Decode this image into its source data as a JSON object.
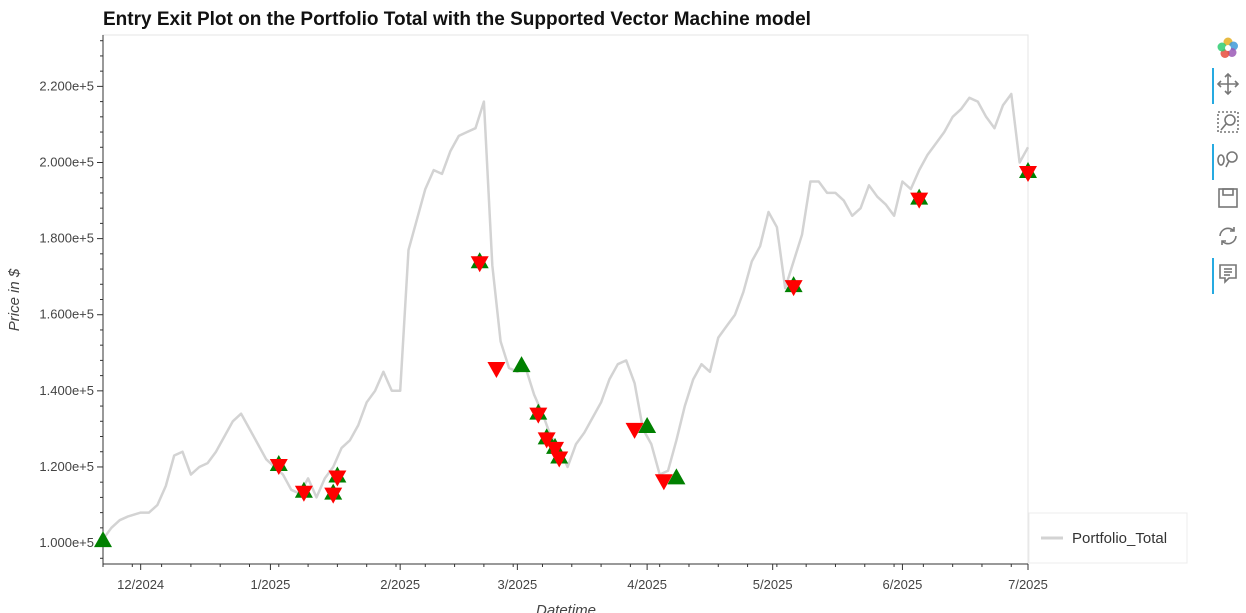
{
  "chart_data": {
    "type": "line",
    "title": "Entry Exit Plot on the Portfolio Total with the Supported Vector Machine model",
    "xlabel": "Datetime",
    "ylabel": "Price in $",
    "xlim": [
      "2024-11-22",
      "2025-07-01"
    ],
    "ylim": [
      94500,
      233500
    ],
    "y_ticks": [
      100000,
      120000,
      140000,
      160000,
      180000,
      200000,
      220000
    ],
    "y_tick_labels": [
      "1.000e+5",
      "1.200e+5",
      "1.400e+5",
      "1.600e+5",
      "1.800e+5",
      "2.000e+5",
      "2.200e+5"
    ],
    "x_ticks": [
      "2024-12-01",
      "2025-01-01",
      "2025-02-01",
      "2025-03-01",
      "2025-04-01",
      "2025-05-01",
      "2025-06-01",
      "2025-07-01"
    ],
    "x_tick_labels": [
      "12/2024",
      "1/2025",
      "2/2025",
      "3/2025",
      "4/2025",
      "5/2025",
      "6/2025",
      "7/2025"
    ],
    "grid": false,
    "legend_position": "bottom-right, outside plot",
    "series": [
      {
        "name": "Portfolio_Total",
        "color": "#d3d3d3",
        "x": [
          "2024-11-22",
          "2024-11-24",
          "2024-11-26",
          "2024-11-28",
          "2024-12-01",
          "2024-12-03",
          "2024-12-05",
          "2024-12-07",
          "2024-12-09",
          "2024-12-11",
          "2024-12-13",
          "2024-12-15",
          "2024-12-17",
          "2024-12-19",
          "2024-12-21",
          "2024-12-23",
          "2024-12-25",
          "2024-12-27",
          "2024-12-29",
          "2024-12-31",
          "2025-01-02",
          "2025-01-04",
          "2025-01-06",
          "2025-01-08",
          "2025-01-10",
          "2025-01-12",
          "2025-01-14",
          "2025-01-16",
          "2025-01-18",
          "2025-01-20",
          "2025-01-22",
          "2025-01-24",
          "2025-01-26",
          "2025-01-28",
          "2025-01-30",
          "2025-02-01",
          "2025-02-03",
          "2025-02-05",
          "2025-02-07",
          "2025-02-09",
          "2025-02-11",
          "2025-02-13",
          "2025-02-15",
          "2025-02-17",
          "2025-02-19",
          "2025-02-21",
          "2025-02-23",
          "2025-02-25",
          "2025-02-27",
          "2025-03-01",
          "2025-03-03",
          "2025-03-05",
          "2025-03-07",
          "2025-03-09",
          "2025-03-11",
          "2025-03-13",
          "2025-03-15",
          "2025-03-17",
          "2025-03-19",
          "2025-03-21",
          "2025-03-23",
          "2025-03-25",
          "2025-03-27",
          "2025-03-29",
          "2025-03-31",
          "2025-04-02",
          "2025-04-04",
          "2025-04-06",
          "2025-04-08",
          "2025-04-10",
          "2025-04-12",
          "2025-04-14",
          "2025-04-16",
          "2025-04-18",
          "2025-04-20",
          "2025-04-22",
          "2025-04-24",
          "2025-04-26",
          "2025-04-28",
          "2025-04-30",
          "2025-05-02",
          "2025-05-04",
          "2025-05-06",
          "2025-05-08",
          "2025-05-10",
          "2025-05-12",
          "2025-05-14",
          "2025-05-16",
          "2025-05-18",
          "2025-05-20",
          "2025-05-22",
          "2025-05-24",
          "2025-05-26",
          "2025-05-28",
          "2025-05-30",
          "2025-06-01",
          "2025-06-03",
          "2025-06-05",
          "2025-06-07",
          "2025-06-09",
          "2025-06-11",
          "2025-06-13",
          "2025-06-15",
          "2025-06-17",
          "2025-06-19",
          "2025-06-21",
          "2025-06-23",
          "2025-06-25",
          "2025-06-27",
          "2025-06-29",
          "2025-07-01"
        ],
        "values": [
          101000,
          104000,
          106000,
          107000,
          108000,
          108000,
          110000,
          115000,
          123000,
          124000,
          118000,
          120000,
          121000,
          124000,
          128000,
          132000,
          134000,
          130000,
          126000,
          122000,
          120000,
          118000,
          114000,
          113000,
          117000,
          112000,
          117000,
          120000,
          125000,
          127000,
          131000,
          137000,
          140000,
          145000,
          140000,
          140000,
          177000,
          185000,
          193000,
          198000,
          197000,
          203000,
          207000,
          208000,
          209000,
          216000,
          173000,
          153000,
          146000,
          145000,
          146000,
          139000,
          134000,
          128000,
          125000,
          120000,
          126000,
          129000,
          133000,
          137000,
          143000,
          147000,
          148000,
          142000,
          130000,
          126000,
          118000,
          119000,
          127000,
          136000,
          143000,
          147000,
          145000,
          154000,
          157000,
          160000,
          166000,
          174000,
          178000,
          187000,
          183000,
          167000,
          174000,
          181000,
          195000,
          195000,
          192000,
          192000,
          190000,
          186000,
          188000,
          194000,
          191000,
          189000,
          186000,
          195000,
          193000,
          198000,
          202000,
          205000,
          208000,
          212000,
          214000,
          217000,
          216000,
          212000,
          209000,
          215000,
          218000,
          200000,
          204000
        ]
      }
    ],
    "entries": {
      "marker": "triangle-up",
      "color": "#008000",
      "x": [
        "2024-11-22",
        "2025-01-03",
        "2025-01-09",
        "2025-01-16",
        "2025-01-17",
        "2025-02-20",
        "2025-03-02",
        "2025-03-06",
        "2025-03-08",
        "2025-03-10",
        "2025-03-11",
        "2025-04-01",
        "2025-04-08",
        "2025-05-06",
        "2025-06-05",
        "2025-07-01"
      ],
      "values": [
        100500,
        120500,
        113500,
        113000,
        117500,
        173800,
        146500,
        134000,
        127500,
        125000,
        122500,
        130500,
        117000,
        167500,
        190500,
        197500
      ]
    },
    "exits": {
      "marker": "triangle-down",
      "color": "#ff0000",
      "x": [
        "2025-01-03",
        "2025-01-09",
        "2025-01-16",
        "2025-01-17",
        "2025-02-20",
        "2025-02-24",
        "2025-03-06",
        "2025-03-08",
        "2025-03-10",
        "2025-03-11",
        "2025-03-29",
        "2025-04-05",
        "2025-05-06",
        "2025-06-05",
        "2025-07-01"
      ],
      "values": [
        120500,
        113500,
        113000,
        117500,
        173800,
        146000,
        134000,
        127500,
        125000,
        122500,
        130000,
        116500,
        167500,
        190500,
        197500
      ]
    }
  },
  "legend": {
    "series_label": "Portfolio_Total",
    "line_color": "#d3d3d3"
  },
  "toolbar": {
    "logo": "bokeh-logo-icon",
    "tools": [
      "pan-icon",
      "box-zoom-icon",
      "wheel-zoom-icon",
      "save-icon",
      "reset-icon",
      "hover-icon"
    ]
  }
}
